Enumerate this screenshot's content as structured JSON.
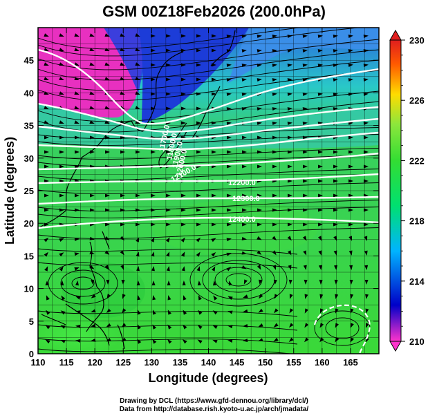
{
  "title": "GSM 00Z18Feb2026 (200.0hPa)",
  "xaxis": {
    "label": "Longitude (degrees)",
    "range": [
      110,
      170
    ],
    "ticks": [
      "110",
      "115",
      "120",
      "125",
      "130",
      "135",
      "140",
      "145",
      "150",
      "155",
      "160",
      "165"
    ]
  },
  "yaxis": {
    "label": "Latitude  (degrees)",
    "range": [
      0,
      50
    ],
    "ticks": [
      "0",
      "5",
      "10",
      "15",
      "20",
      "25",
      "30",
      "35",
      "40",
      "45"
    ]
  },
  "colorbar": {
    "range": [
      210,
      230
    ],
    "labels": [
      "230",
      "226",
      "222",
      "218",
      "214",
      "210"
    ],
    "colors": [
      "#ff33cc",
      "#0000c8",
      "#00b4ff",
      "#00e070",
      "#33dd33",
      "#8ce63c",
      "#ffdc00",
      "#ff5a00",
      "#e01e1e"
    ]
  },
  "contours": [
    {
      "label": "11700.0"
    },
    {
      "label": "11800.0"
    },
    {
      "label": "11900.0"
    },
    {
      "label": "12000.0"
    },
    {
      "label": "12100.0"
    },
    {
      "label": "12200.0"
    },
    {
      "label": "12300.0"
    },
    {
      "label": "12400.0"
    }
  ],
  "credits": {
    "line1": "Drawing by DCL (https://www.gfd-dennou.org/library/dcl/)",
    "line2": "Data from http://database.rish.kyoto-u.ac.jp/arch/jmadata/"
  }
}
